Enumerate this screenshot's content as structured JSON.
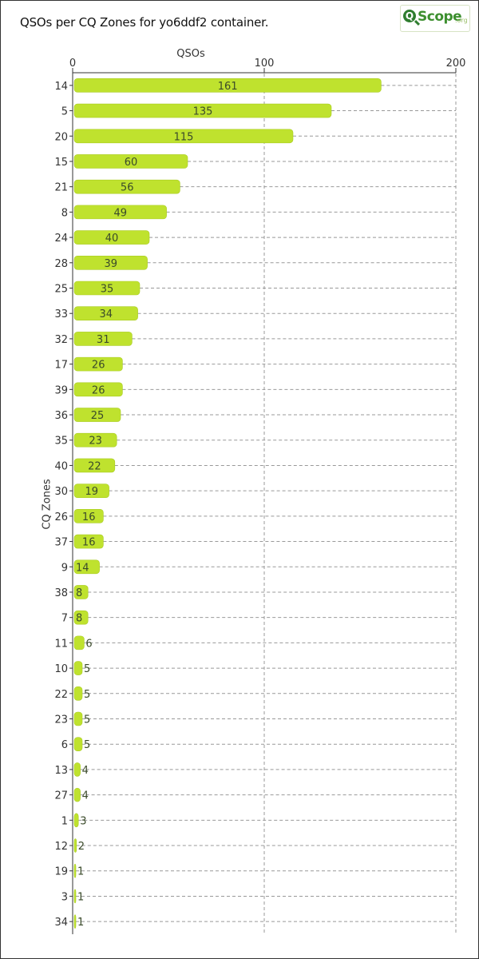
{
  "title": "QSOs per CQ Zones for yo6ddf2 container.",
  "logo": {
    "mark": "Q",
    "word": "Scope",
    "tld": ".org"
  },
  "colors": {
    "bar": "#bfe22e",
    "grid": "#999999",
    "axis": "#333333"
  },
  "chart_data": {
    "type": "bar",
    "orientation": "horizontal",
    "xlabel": "QSOs",
    "ylabel": "CQ Zones",
    "xlim": [
      0,
      200
    ],
    "xticks": [
      0,
      100,
      200
    ],
    "grid": true,
    "categories": [
      "14",
      "5",
      "20",
      "15",
      "21",
      "8",
      "24",
      "28",
      "25",
      "33",
      "32",
      "17",
      "39",
      "36",
      "35",
      "40",
      "30",
      "26",
      "37",
      "9",
      "38",
      "7",
      "11",
      "10",
      "22",
      "23",
      "6",
      "13",
      "27",
      "1",
      "12",
      "19",
      "3",
      "34"
    ],
    "values": [
      161,
      135,
      115,
      60,
      56,
      49,
      40,
      39,
      35,
      34,
      31,
      26,
      26,
      25,
      23,
      22,
      19,
      16,
      16,
      14,
      8,
      8,
      6,
      5,
      5,
      5,
      5,
      4,
      4,
      3,
      2,
      1,
      1,
      1
    ]
  }
}
